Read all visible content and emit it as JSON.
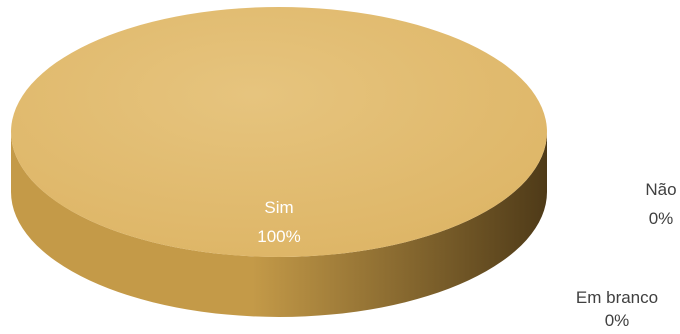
{
  "chart_data": {
    "type": "pie",
    "title": "",
    "categories": [
      "Sim",
      "Não",
      "Em branco"
    ],
    "values": [
      100,
      0,
      0
    ],
    "value_labels": [
      "100%",
      "0%",
      "0%"
    ],
    "legend": "none",
    "style": "3d",
    "colors": {
      "top": "#DDB464",
      "top_highlight": "#E6C47E",
      "side_light": "#C49A48",
      "side_dark": "#4E3A18",
      "label": "#404040"
    }
  }
}
